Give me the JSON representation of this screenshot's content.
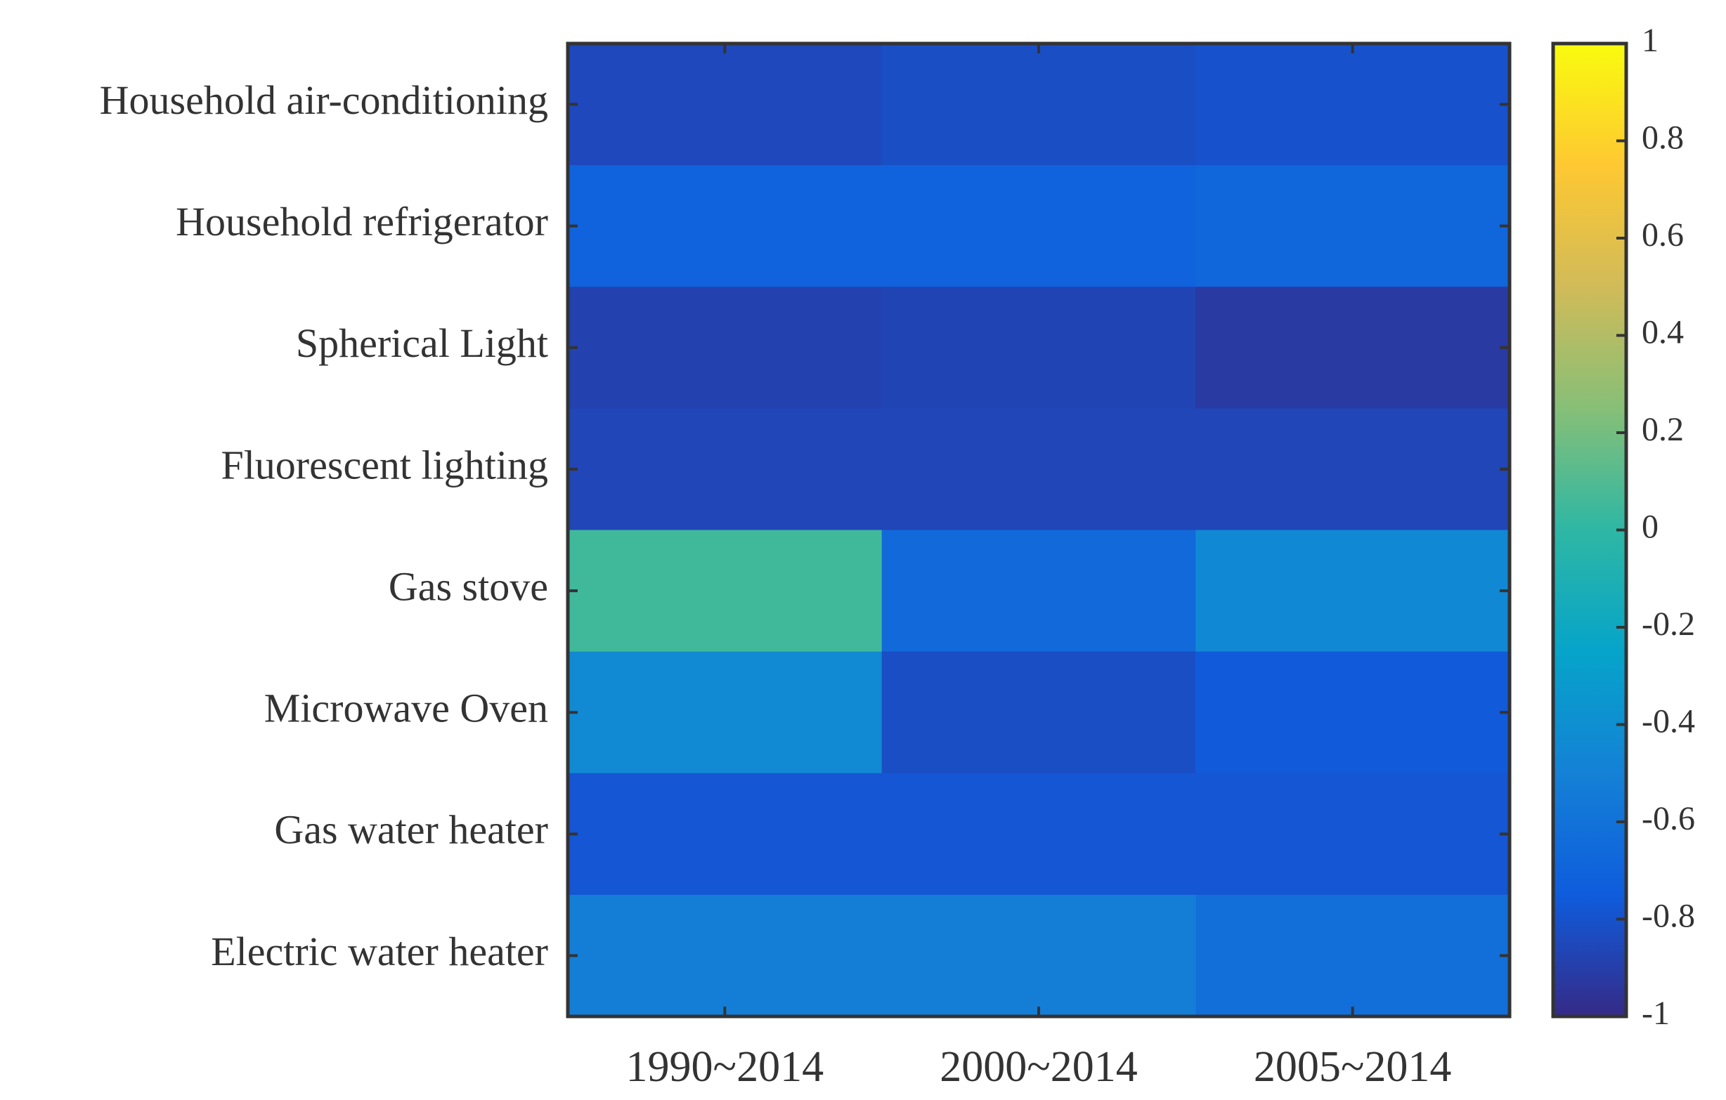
{
  "chart_data": {
    "type": "heatmap",
    "title": "",
    "xlabel": "",
    "ylabel": "",
    "x_categories": [
      "1990~2014",
      "2000~2014",
      "2005~2014"
    ],
    "y_categories": [
      "Household air-conditioning",
      "Household refrigerator",
      "Spherical Light",
      "Fluorescent lighting",
      "Gas stove",
      "Microwave Oven",
      "Gas water heater",
      "Electric water heater"
    ],
    "values": [
      [
        -0.85,
        -0.82,
        -0.8
      ],
      [
        -0.7,
        -0.7,
        -0.68
      ],
      [
        -0.88,
        -0.87,
        -0.92
      ],
      [
        -0.86,
        -0.86,
        -0.86
      ],
      [
        0.05,
        -0.66,
        -0.45
      ],
      [
        -0.44,
        -0.82,
        -0.76
      ],
      [
        -0.78,
        -0.78,
        -0.78
      ],
      [
        -0.52,
        -0.52,
        -0.62
      ]
    ],
    "colorbar": {
      "range": [
        -1,
        1
      ],
      "ticks": [
        1,
        0.8,
        0.6,
        0.4,
        0.2,
        0,
        -0.2,
        -0.4,
        -0.6,
        -0.8,
        -1
      ],
      "tick_labels": [
        "1",
        "0.8",
        "0.6",
        "0.4",
        "0.2",
        "0",
        "-0.2",
        "-0.4",
        "-0.6",
        "-0.8",
        "-1"
      ],
      "colormap": "parula",
      "colormap_stops": [
        "#352a87",
        "#0f5cdd",
        "#1481d6",
        "#06a4ca",
        "#2eb7a4",
        "#87bf77",
        "#d1bb59",
        "#fec832",
        "#f9fb0e"
      ]
    },
    "grid": false
  }
}
